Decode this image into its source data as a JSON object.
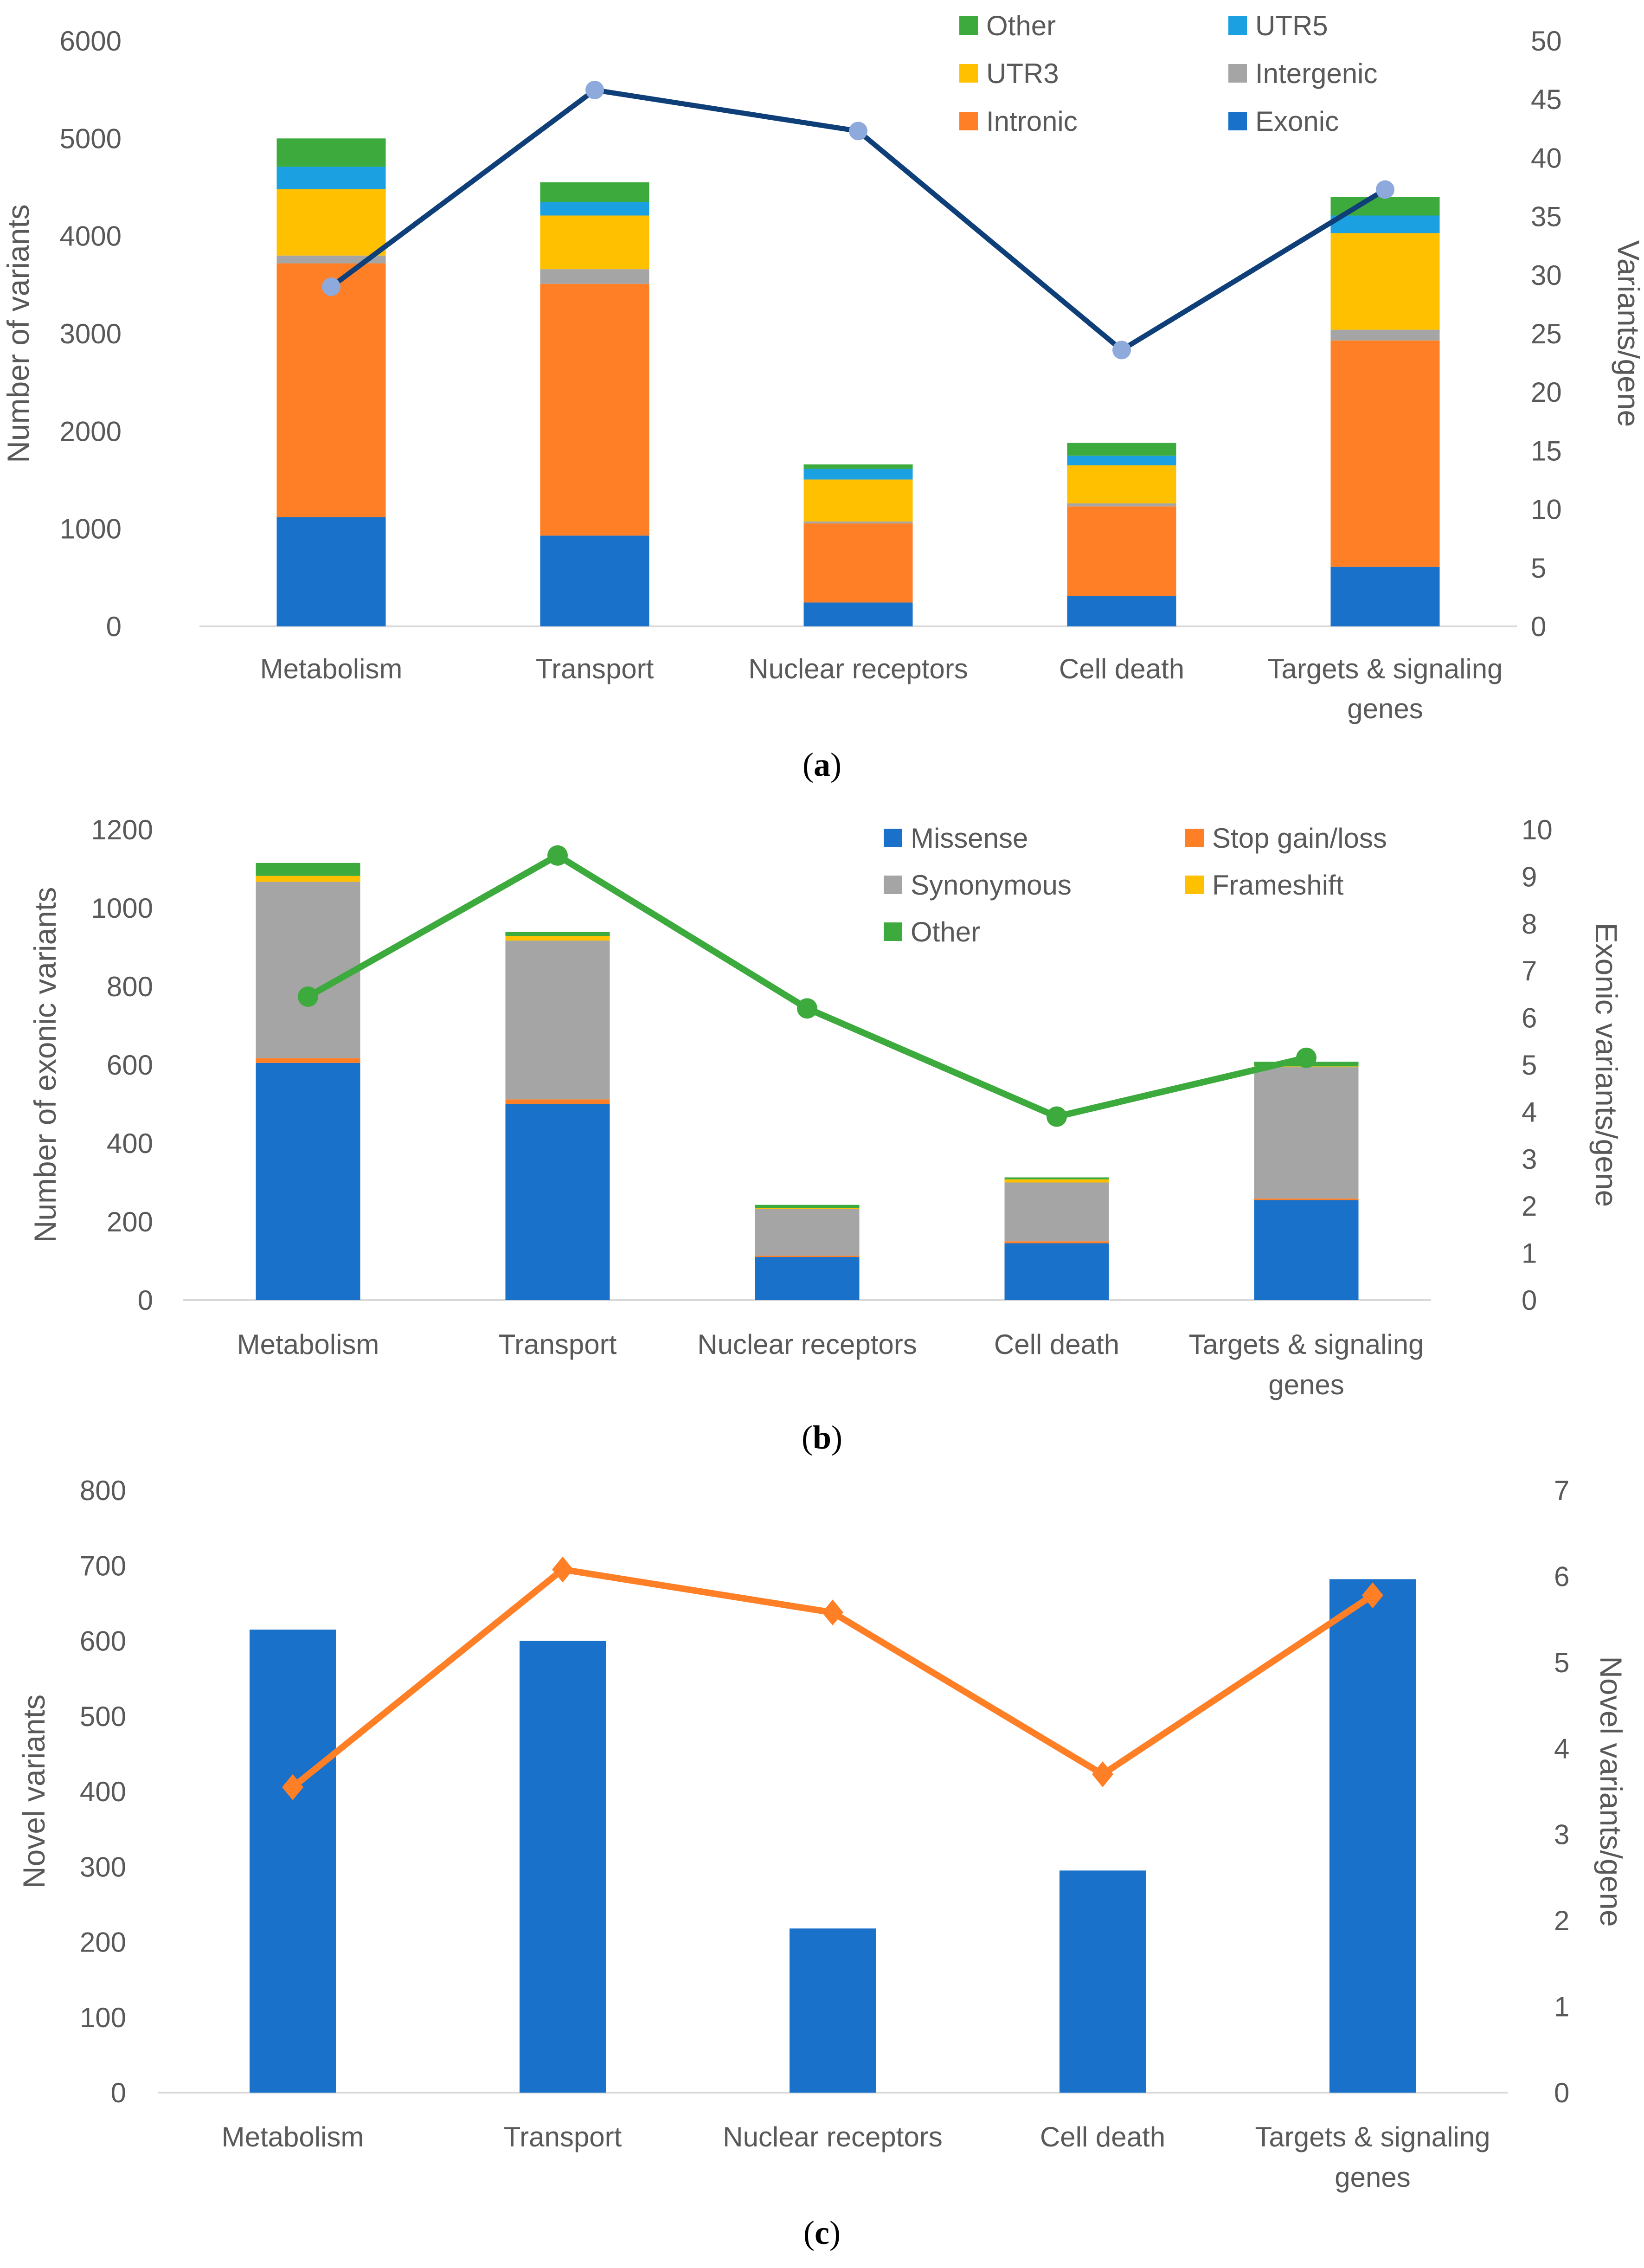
{
  "colors": {
    "Exonic": "#1971C9",
    "Intronic": "#FF7F27",
    "Intergenic": "#A5A5A5",
    "UTR3": "#FFC000",
    "UTR5": "#1BA1E2",
    "Other": "#3DAA3D",
    "Missense": "#1971C9",
    "Stop gain/loss": "#FF7F27",
    "Synonymous": "#A5A5A5",
    "Frameshift": "#FFC000",
    "lineA": "#0E3F78",
    "markerA": "#8EA9DB",
    "lineB": "#3DAA3D",
    "lineC": "#FF7F27",
    "barC": "#1971C9",
    "axis": "#D9D9D9"
  },
  "chart_data": [
    {
      "type": "bar",
      "stacked": true,
      "panel": "a",
      "caption_label": "a",
      "categories": [
        "Metabolism",
        "Transport",
        "Nuclear receptors",
        "Cell death",
        "Targets & signaling genes"
      ],
      "category_lines": [
        [
          "Metabolism"
        ],
        [
          "Transport"
        ],
        [
          "Nuclear receptors"
        ],
        [
          "Cell death"
        ],
        [
          "Targets & signaling",
          "genes"
        ]
      ],
      "series": [
        {
          "name": "Exonic",
          "values": [
            1120,
            930,
            245,
            310,
            610
          ]
        },
        {
          "name": "Intronic",
          "values": [
            2600,
            2580,
            810,
            920,
            2320
          ]
        },
        {
          "name": "Intergenic",
          "values": [
            80,
            150,
            20,
            30,
            110
          ]
        },
        {
          "name": "UTR3",
          "values": [
            680,
            550,
            430,
            390,
            990
          ]
        },
        {
          "name": "UTR5",
          "values": [
            230,
            140,
            110,
            100,
            180
          ]
        },
        {
          "name": "Other",
          "values": [
            290,
            200,
            45,
            130,
            190
          ]
        }
      ],
      "line": {
        "name": "Variants/gene",
        "values": [
          29,
          45.8,
          42.3,
          23.6,
          37.3
        ]
      },
      "ylabel": "Number of variants",
      "y2label": "Variants/gene",
      "ylim": [
        0,
        6000
      ],
      "yticks": [
        0,
        1000,
        2000,
        3000,
        4000,
        5000,
        6000
      ],
      "y2lim": [
        0,
        50
      ],
      "y2ticks": [
        0,
        5,
        10,
        15,
        20,
        25,
        30,
        35,
        40,
        45,
        50
      ],
      "legend": [
        [
          "Other",
          "UTR5"
        ],
        [
          "UTR3",
          "Intergenic"
        ],
        [
          "Intronic",
          "Exonic"
        ]
      ],
      "legend_position": "top-right"
    },
    {
      "type": "bar",
      "stacked": true,
      "panel": "b",
      "caption_label": "b",
      "categories": [
        "Metabolism",
        "Transport",
        "Nuclear receptors",
        "Cell death",
        "Targets & signaling genes"
      ],
      "category_lines": [
        [
          "Metabolism"
        ],
        [
          "Transport"
        ],
        [
          "Nuclear receptors"
        ],
        [
          "Cell death"
        ],
        [
          "Targets & signaling",
          "genes"
        ]
      ],
      "series": [
        {
          "name": "Missense",
          "values": [
            605,
            500,
            110,
            145,
            255
          ]
        },
        {
          "name": "Stop gain/loss",
          "values": [
            12,
            12,
            3,
            5,
            4
          ]
        },
        {
          "name": "Synonymous",
          "values": [
            450,
            405,
            120,
            150,
            335
          ]
        },
        {
          "name": "Frameshift",
          "values": [
            15,
            12,
            2,
            8,
            2
          ]
        },
        {
          "name": "Other",
          "values": [
            33,
            10,
            8,
            5,
            12
          ]
        }
      ],
      "line": {
        "name": "Exonic variants/gene",
        "values": [
          6.45,
          9.45,
          6.2,
          3.9,
          5.15
        ]
      },
      "ylabel": "Number of exonic variants",
      "y2label": "Exonic variants/gene",
      "ylim": [
        0,
        1200
      ],
      "yticks": [
        0,
        200,
        400,
        600,
        800,
        1000,
        1200
      ],
      "y2lim": [
        0,
        10
      ],
      "y2ticks": [
        0,
        1,
        2,
        3,
        4,
        5,
        6,
        7,
        8,
        9,
        10
      ],
      "legend": [
        [
          "Missense",
          "Stop gain/loss"
        ],
        [
          "Synonymous",
          "Frameshift"
        ],
        [
          "Other"
        ]
      ],
      "legend_position": "top-right"
    },
    {
      "type": "bar",
      "stacked": false,
      "panel": "c",
      "caption_label": "c",
      "categories": [
        "Metabolism",
        "Transport",
        "Nuclear receptors",
        "Cell death",
        "Targets & signaling genes"
      ],
      "category_lines": [
        [
          "Metabolism"
        ],
        [
          "Transport"
        ],
        [
          "Nuclear receptors"
        ],
        [
          "Cell death"
        ],
        [
          "Targets & signaling",
          "genes"
        ]
      ],
      "series": [
        {
          "name": "Novel variants",
          "values": [
            615,
            600,
            218,
            295,
            682
          ]
        }
      ],
      "line": {
        "name": "Novel variants/gene",
        "values": [
          3.55,
          6.08,
          5.58,
          3.7,
          5.78
        ]
      },
      "ylabel": "Novel variants",
      "y2label": "Novel variants/gene",
      "ylim": [
        0,
        800
      ],
      "yticks": [
        0,
        100,
        200,
        300,
        400,
        500,
        600,
        700,
        800
      ],
      "y2lim": [
        0,
        7
      ],
      "y2ticks": [
        0,
        1,
        2,
        3,
        4,
        5,
        6,
        7
      ],
      "legend": [],
      "legend_position": "none"
    }
  ]
}
